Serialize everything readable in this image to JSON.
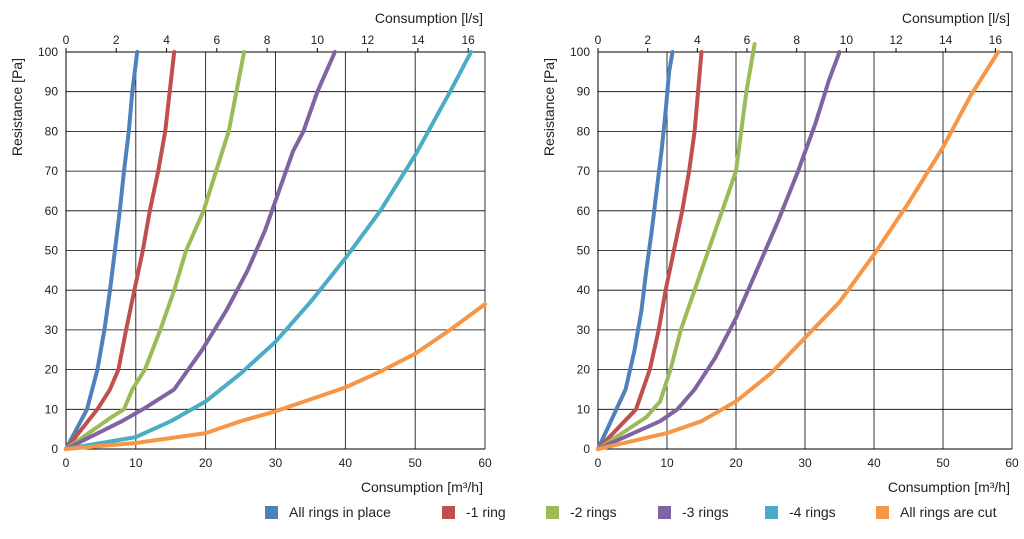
{
  "colors": {
    "all_rings": "#4F81BD",
    "minus1": "#C0504D",
    "minus2": "#9BBB59",
    "minus3": "#8064A2",
    "minus4": "#4BACC6",
    "cut": "#F79646"
  },
  "legend": [
    {
      "label": "All rings in place",
      "color": "#4F81BD"
    },
    {
      "label": "-1 ring",
      "color": "#C0504D"
    },
    {
      "label": "-2 rings",
      "color": "#9BBB59"
    },
    {
      "label": "-3 rings",
      "color": "#8064A2"
    },
    {
      "label": "-4 rings",
      "color": "#4BACC6"
    },
    {
      "label": "All rings are cut",
      "color": "#F79646"
    }
  ],
  "chart_data": [
    {
      "type": "line",
      "xlabel": "Consumption [m³/h]",
      "x2label": "Consumption [l/s]",
      "ylabel": "Resistance [Pa]",
      "xlim": [
        0,
        60
      ],
      "x2lim": [
        0,
        16.67
      ],
      "ylim": [
        0,
        100
      ],
      "xticks": [
        "0",
        "10",
        "20",
        "30",
        "40",
        "50",
        "60"
      ],
      "x2ticks": [
        "0",
        "2",
        "4",
        "6",
        "8",
        "10",
        "12",
        "14",
        "16"
      ],
      "yticks": [
        "0",
        "10",
        "20",
        "30",
        "40",
        "50",
        "60",
        "70",
        "80",
        "90",
        "100"
      ],
      "grid": true,
      "series": [
        {
          "name": "All rings in place",
          "color": "#4F81BD",
          "x": [
            0,
            3,
            4.5,
            5.5,
            6.3,
            7,
            7.7,
            8.3,
            9,
            9.5,
            10.2
          ],
          "y": [
            0,
            10,
            20,
            30,
            40,
            50,
            60,
            70,
            80,
            90,
            100
          ]
        },
        {
          "name": "-1 ring",
          "color": "#C0504D",
          "x": [
            0,
            4.5,
            6.3,
            7.5,
            8.6,
            9.8,
            11,
            12,
            13.2,
            14.2,
            15.5
          ],
          "y": [
            0,
            10,
            15,
            20,
            30,
            40,
            50,
            60,
            70,
            80,
            100
          ]
        },
        {
          "name": "-2 rings",
          "color": "#9BBB59",
          "x": [
            0,
            6.5,
            8.3,
            9.5,
            11.3,
            13.5,
            15.5,
            17.2,
            19.7,
            21.5,
            23.3,
            25.5
          ],
          "y": [
            0,
            8,
            10,
            15,
            20,
            30,
            40,
            50,
            60,
            70,
            80,
            100
          ]
        },
        {
          "name": "-3 rings",
          "color": "#8064A2",
          "x": [
            0,
            8,
            11,
            15.5,
            19.5,
            23,
            26,
            28.5,
            30.5,
            32.5,
            34,
            36,
            38.5
          ],
          "y": [
            0,
            7,
            10,
            15,
            25,
            35,
            45,
            55,
            65,
            75,
            80,
            90,
            100
          ]
        },
        {
          "name": "-4 rings",
          "color": "#4BACC6",
          "x": [
            0,
            10,
            15,
            20,
            25,
            30,
            35,
            40,
            45,
            50,
            55,
            58
          ],
          "y": [
            0,
            3,
            7,
            12,
            19,
            27,
            37,
            48,
            60,
            74,
            90,
            100
          ]
        },
        {
          "name": "All rings are cut",
          "color": "#F79646",
          "x": [
            0,
            10,
            20,
            25,
            30,
            35,
            40,
            45,
            50,
            55,
            60
          ],
          "y": [
            0,
            1.5,
            4,
            7,
            9.5,
            12.5,
            15.5,
            19.5,
            24,
            30,
            36.5
          ]
        }
      ]
    },
    {
      "type": "line",
      "xlabel": "Consumption [m³/h]",
      "x2label": "Consumption [l/s]",
      "ylabel": "Resistance [Pa]",
      "xlim": [
        0,
        60
      ],
      "x2lim": [
        0,
        16.67
      ],
      "ylim": [
        0,
        100
      ],
      "xticks": [
        "0",
        "10",
        "20",
        "30",
        "40",
        "50",
        "60"
      ],
      "x2ticks": [
        "0",
        "2",
        "4",
        "6",
        "8",
        "10",
        "12",
        "14",
        "16"
      ],
      "yticks": [
        "0",
        "10",
        "20",
        "30",
        "40",
        "50",
        "60",
        "70",
        "80",
        "90",
        "100"
      ],
      "grid": true,
      "series": [
        {
          "name": "All rings in place",
          "color": "#4F81BD",
          "x": [
            0,
            4,
            5.3,
            6.3,
            7,
            7.8,
            8.5,
            9.2,
            9.8,
            10.3,
            10.8
          ],
          "y": [
            0,
            15,
            25,
            35,
            45,
            55,
            65,
            75,
            85,
            95,
            100
          ]
        },
        {
          "name": "-1 ring",
          "color": "#C0504D",
          "x": [
            0,
            5.5,
            7.5,
            8.8,
            9.8,
            11,
            12.2,
            13.2,
            14,
            15
          ],
          "y": [
            0,
            10,
            20,
            30,
            40,
            50,
            60,
            70,
            80,
            100
          ]
        },
        {
          "name": "-2 rings",
          "color": "#9BBB59",
          "x": [
            0,
            7,
            9,
            10.5,
            12,
            14,
            16,
            18,
            20,
            21.5,
            22.7
          ],
          "y": [
            0,
            8,
            12,
            20,
            30,
            40,
            50,
            60,
            70,
            90,
            102
          ]
        },
        {
          "name": "-3 rings",
          "color": "#8064A2",
          "x": [
            0,
            9,
            11.5,
            14,
            17,
            20,
            23,
            26,
            29,
            31.5,
            33.5,
            35
          ],
          "y": [
            0,
            7,
            10,
            15,
            23,
            33,
            45,
            57,
            70,
            82,
            93,
            100
          ]
        },
        {
          "name": "All rings are cut",
          "color": "#F79646",
          "x": [
            0,
            10,
            15,
            20,
            25,
            30,
            35,
            40,
            45,
            50,
            54,
            58
          ],
          "y": [
            0,
            4,
            7,
            12,
            19,
            28,
            37,
            49,
            62,
            76,
            89,
            100
          ]
        }
      ]
    }
  ]
}
